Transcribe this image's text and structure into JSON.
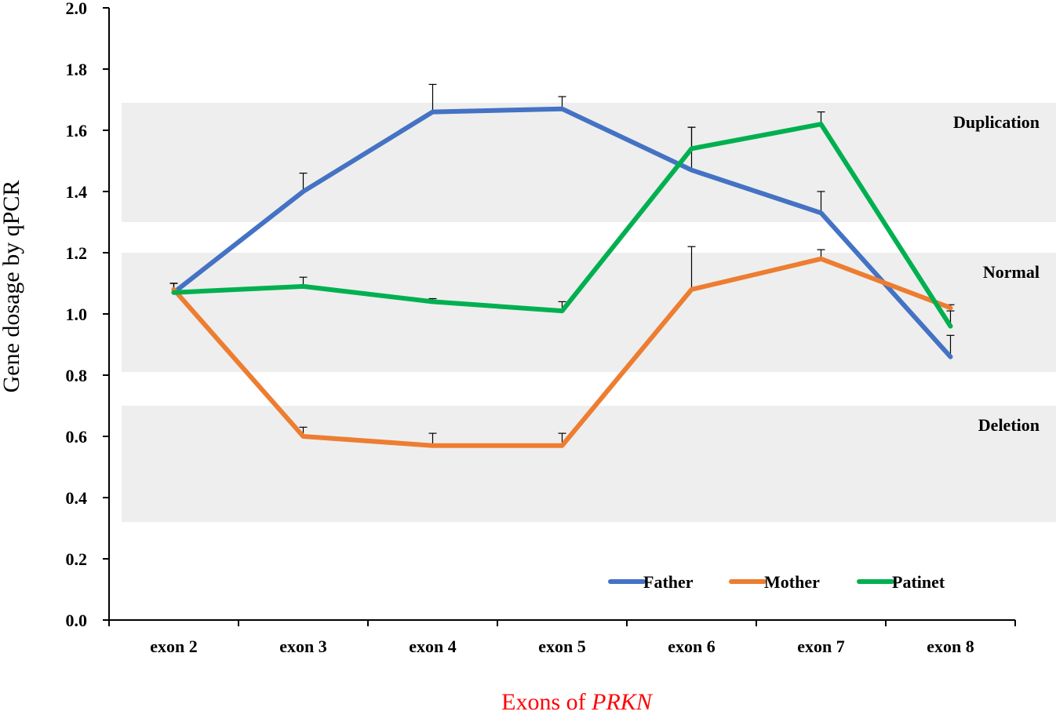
{
  "chart_data": {
    "type": "line",
    "ylabel": "Gene dosage by qPCR",
    "xlabel_prefix": "Exons of ",
    "xlabel_gene": "PRKN",
    "xlabel_color": "#ff0000",
    "categories": [
      "exon 2",
      "exon 3",
      "exon 4",
      "exon 5",
      "exon 6",
      "exon 7",
      "exon 8"
    ],
    "ylim": [
      0,
      2.0
    ],
    "yticks": [
      "0.0",
      "0.2",
      "0.4",
      "0.6",
      "0.8",
      "1.0",
      "1.2",
      "1.4",
      "1.6",
      "1.8",
      "2.0"
    ],
    "bands": [
      {
        "label": "Duplication",
        "range": [
          1.3,
          1.69
        ]
      },
      {
        "label": "Normal",
        "range": [
          0.81,
          1.2
        ]
      },
      {
        "label": "Deletion",
        "range": [
          0.32,
          0.7
        ]
      }
    ],
    "band_color": "#eeeeee",
    "legend_position": "bottom-right",
    "series": [
      {
        "name": "Father",
        "color": "#4472c4",
        "values": [
          1.07,
          1.4,
          1.66,
          1.67,
          1.47,
          1.33,
          0.86
        ],
        "errors": [
          0.03,
          0.06,
          0.09,
          0.04,
          0.14,
          0.07,
          0.07
        ]
      },
      {
        "name": "Mother",
        "color": "#ed7d31",
        "values": [
          1.08,
          0.6,
          0.57,
          0.57,
          1.08,
          1.18,
          1.02
        ],
        "errors": [
          0.02,
          0.03,
          0.04,
          0.04,
          0.14,
          0.03,
          0.01
        ]
      },
      {
        "name": "Patinet",
        "color": "#00b050",
        "values": [
          1.07,
          1.09,
          1.04,
          1.01,
          1.54,
          1.62,
          0.96
        ],
        "errors": [
          0.03,
          0.03,
          0.01,
          0.03,
          0.07,
          0.04,
          0.05
        ]
      }
    ]
  }
}
